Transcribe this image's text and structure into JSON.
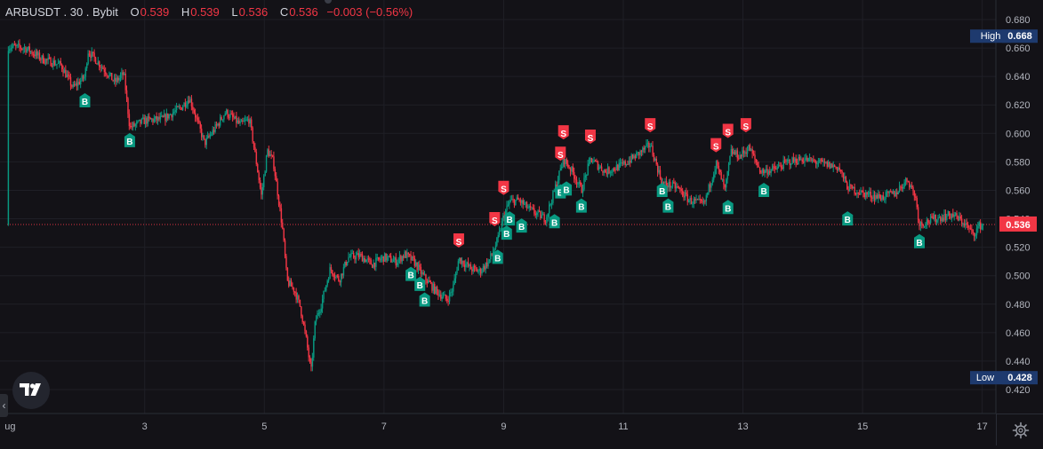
{
  "legend": {
    "symbol": "ARBUSDT . 30 . Bybit",
    "open_label": "O",
    "open": "0.539",
    "high_label": "H",
    "high": "0.539",
    "low_label": "L",
    "low": "0.536",
    "close_label": "C",
    "close": "0.536",
    "change": "−0.003 (−0.56%)"
  },
  "colors": {
    "background": "#131217",
    "up": "#089981",
    "down": "#f23645",
    "grid": "#1f1f26",
    "buy_marker": "#089981",
    "sell_marker": "#f23645",
    "price_label": "#f23645",
    "high_low_label": "#1e3a6e"
  },
  "icons": [
    "tradingview-logo-icon",
    "chevron-left-icon",
    "settings-gear-icon"
  ],
  "chart_data": {
    "type": "candlestick",
    "ylim": [
      0.415,
      0.69
    ],
    "y_ticks": [
      "0.680",
      "0.660",
      "0.640",
      "0.620",
      "0.600",
      "0.580",
      "0.560",
      "0.540",
      "0.520",
      "0.500",
      "0.480",
      "0.460",
      "0.440",
      "0.420"
    ],
    "x_ticks": [
      {
        "label": "ug",
        "day": 0.75
      },
      {
        "label": "3",
        "day": 3
      },
      {
        "label": "5",
        "day": 5
      },
      {
        "label": "7",
        "day": 7
      },
      {
        "label": "9",
        "day": 9
      },
      {
        "label": "11",
        "day": 11
      },
      {
        "label": "13",
        "day": 13
      },
      {
        "label": "15",
        "day": 15
      },
      {
        "label": "17",
        "day": 17
      }
    ],
    "x_range_days": [
      0.7,
      17.05
    ],
    "price_path": [
      {
        "day": 0.72,
        "price": 0.661
      },
      {
        "day": 1.0,
        "price": 0.66
      },
      {
        "day": 1.3,
        "price": 0.652
      },
      {
        "day": 1.6,
        "price": 0.648
      },
      {
        "day": 1.8,
        "price": 0.632
      },
      {
        "day": 2.0,
        "price": 0.64
      },
      {
        "day": 2.05,
        "price": 0.658
      },
      {
        "day": 2.3,
        "price": 0.646
      },
      {
        "day": 2.5,
        "price": 0.636
      },
      {
        "day": 2.65,
        "price": 0.642
      },
      {
        "day": 2.75,
        "price": 0.604
      },
      {
        "day": 3.0,
        "price": 0.609
      },
      {
        "day": 3.3,
        "price": 0.61
      },
      {
        "day": 3.6,
        "price": 0.618
      },
      {
        "day": 3.75,
        "price": 0.625
      },
      {
        "day": 3.85,
        "price": 0.612
      },
      {
        "day": 4.0,
        "price": 0.593
      },
      {
        "day": 4.2,
        "price": 0.605
      },
      {
        "day": 4.35,
        "price": 0.615
      },
      {
        "day": 4.6,
        "price": 0.606
      },
      {
        "day": 4.75,
        "price": 0.61
      },
      {
        "day": 4.85,
        "price": 0.584
      },
      {
        "day": 4.95,
        "price": 0.556
      },
      {
        "day": 5.05,
        "price": 0.588
      },
      {
        "day": 5.15,
        "price": 0.58
      },
      {
        "day": 5.3,
        "price": 0.534
      },
      {
        "day": 5.38,
        "price": 0.496
      },
      {
        "day": 5.5,
        "price": 0.49
      },
      {
        "day": 5.6,
        "price": 0.478
      },
      {
        "day": 5.7,
        "price": 0.455
      },
      {
        "day": 5.78,
        "price": 0.432
      },
      {
        "day": 5.85,
        "price": 0.468
      },
      {
        "day": 5.95,
        "price": 0.48
      },
      {
        "day": 6.1,
        "price": 0.505
      },
      {
        "day": 6.25,
        "price": 0.497
      },
      {
        "day": 6.4,
        "price": 0.513
      },
      {
        "day": 6.6,
        "price": 0.514
      },
      {
        "day": 6.8,
        "price": 0.508
      },
      {
        "day": 7.0,
        "price": 0.513
      },
      {
        "day": 7.2,
        "price": 0.51
      },
      {
        "day": 7.35,
        "price": 0.515
      },
      {
        "day": 7.5,
        "price": 0.51
      },
      {
        "day": 7.65,
        "price": 0.5
      },
      {
        "day": 7.85,
        "price": 0.49
      },
      {
        "day": 8.05,
        "price": 0.483
      },
      {
        "day": 8.15,
        "price": 0.491
      },
      {
        "day": 8.25,
        "price": 0.512
      },
      {
        "day": 8.45,
        "price": 0.505
      },
      {
        "day": 8.6,
        "price": 0.503
      },
      {
        "day": 8.75,
        "price": 0.51
      },
      {
        "day": 8.9,
        "price": 0.525
      },
      {
        "day": 9.0,
        "price": 0.542
      },
      {
        "day": 9.1,
        "price": 0.552
      },
      {
        "day": 9.25,
        "price": 0.553
      },
      {
        "day": 9.45,
        "price": 0.546
      },
      {
        "day": 9.7,
        "price": 0.54
      },
      {
        "day": 9.85,
        "price": 0.56
      },
      {
        "day": 10.0,
        "price": 0.582
      },
      {
        "day": 10.15,
        "price": 0.573
      },
      {
        "day": 10.3,
        "price": 0.56
      },
      {
        "day": 10.45,
        "price": 0.582
      },
      {
        "day": 10.7,
        "price": 0.573
      },
      {
        "day": 11.0,
        "price": 0.578
      },
      {
        "day": 11.2,
        "price": 0.584
      },
      {
        "day": 11.45,
        "price": 0.592
      },
      {
        "day": 11.65,
        "price": 0.565
      },
      {
        "day": 11.9,
        "price": 0.562
      },
      {
        "day": 12.1,
        "price": 0.553
      },
      {
        "day": 12.35,
        "price": 0.55
      },
      {
        "day": 12.55,
        "price": 0.579
      },
      {
        "day": 12.7,
        "price": 0.56
      },
      {
        "day": 12.8,
        "price": 0.587
      },
      {
        "day": 12.95,
        "price": 0.584
      },
      {
        "day": 13.1,
        "price": 0.59
      },
      {
        "day": 13.3,
        "price": 0.573
      },
      {
        "day": 13.55,
        "price": 0.575
      },
      {
        "day": 13.75,
        "price": 0.58
      },
      {
        "day": 14.0,
        "price": 0.582
      },
      {
        "day": 14.3,
        "price": 0.579
      },
      {
        "day": 14.6,
        "price": 0.576
      },
      {
        "day": 14.75,
        "price": 0.562
      },
      {
        "day": 15.0,
        "price": 0.558
      },
      {
        "day": 15.3,
        "price": 0.555
      },
      {
        "day": 15.55,
        "price": 0.558
      },
      {
        "day": 15.75,
        "price": 0.568
      },
      {
        "day": 15.88,
        "price": 0.556
      },
      {
        "day": 15.95,
        "price": 0.536
      },
      {
        "day": 16.2,
        "price": 0.54
      },
      {
        "day": 16.5,
        "price": 0.543
      },
      {
        "day": 16.7,
        "price": 0.537
      },
      {
        "day": 16.85,
        "price": 0.529
      },
      {
        "day": 16.95,
        "price": 0.535
      },
      {
        "day": 17.03,
        "price": 0.536
      }
    ],
    "buy_signals": [
      {
        "day": 2.0,
        "price": 0.632
      },
      {
        "day": 2.75,
        "price": 0.604
      },
      {
        "day": 7.45,
        "price": 0.51
      },
      {
        "day": 7.6,
        "price": 0.503
      },
      {
        "day": 7.68,
        "price": 0.492
      },
      {
        "day": 8.9,
        "price": 0.522
      },
      {
        "day": 9.05,
        "price": 0.539
      },
      {
        "day": 9.1,
        "price": 0.549
      },
      {
        "day": 9.3,
        "price": 0.544
      },
      {
        "day": 9.85,
        "price": 0.547
      },
      {
        "day": 9.95,
        "price": 0.568
      },
      {
        "day": 10.05,
        "price": 0.57
      },
      {
        "day": 10.3,
        "price": 0.558
      },
      {
        "day": 11.65,
        "price": 0.569
      },
      {
        "day": 11.75,
        "price": 0.558
      },
      {
        "day": 12.75,
        "price": 0.557
      },
      {
        "day": 13.35,
        "price": 0.569
      },
      {
        "day": 14.75,
        "price": 0.549
      },
      {
        "day": 15.95,
        "price": 0.533
      }
    ],
    "sell_signals": [
      {
        "day": 8.25,
        "price": 0.516
      },
      {
        "day": 8.85,
        "price": 0.531
      },
      {
        "day": 9.0,
        "price": 0.553
      },
      {
        "day": 9.95,
        "price": 0.577
      },
      {
        "day": 10.0,
        "price": 0.592
      },
      {
        "day": 10.45,
        "price": 0.589
      },
      {
        "day": 11.45,
        "price": 0.597
      },
      {
        "day": 12.55,
        "price": 0.583
      },
      {
        "day": 12.75,
        "price": 0.593
      },
      {
        "day": 13.05,
        "price": 0.597
      }
    ],
    "current_price": 0.536,
    "current_price_label": "0.536",
    "high": {
      "label": "High",
      "value": "0.668",
      "price": 0.668
    },
    "low": {
      "label": "Low",
      "value": "0.428",
      "price": 0.428
    },
    "grid": true,
    "buy_marker_text": "B",
    "sell_marker_text": "S"
  }
}
